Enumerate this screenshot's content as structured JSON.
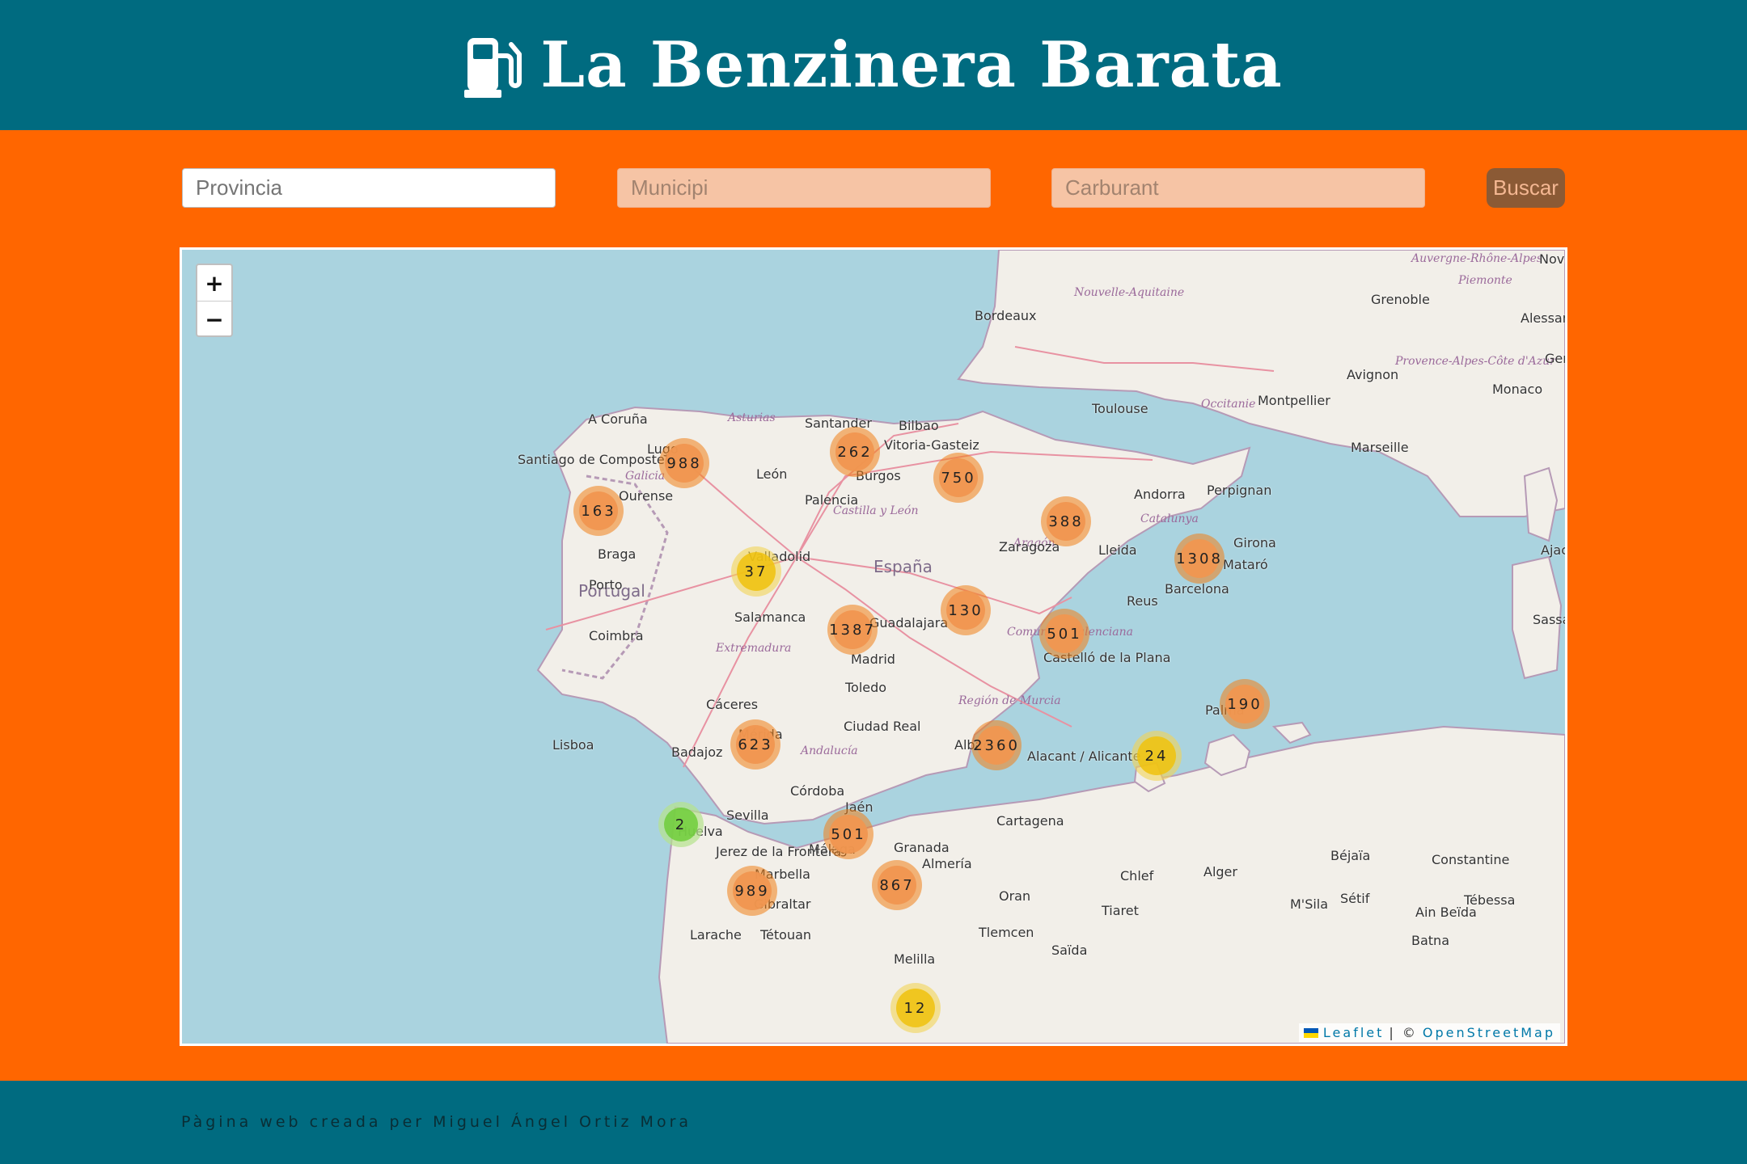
{
  "header": {
    "title": "La Benzinera Barata",
    "icon": "gas-pump-icon",
    "background": "#006b80"
  },
  "search": {
    "provincia_placeholder": "Provincia",
    "municipi_placeholder": "Municipi",
    "carburant_placeholder": "Carburant",
    "button_label": "Buscar"
  },
  "map": {
    "zoom_in": "+",
    "zoom_out": "−",
    "clusters": [
      {
        "count": "988",
        "color": "orange"
      },
      {
        "count": "262",
        "color": "orange"
      },
      {
        "count": "750",
        "color": "orange"
      },
      {
        "count": "163",
        "color": "orange"
      },
      {
        "count": "388",
        "color": "orange"
      },
      {
        "count": "1308",
        "color": "orange"
      },
      {
        "count": "37",
        "color": "yellow"
      },
      {
        "count": "130",
        "color": "orange"
      },
      {
        "count": "1387",
        "color": "orange"
      },
      {
        "count": "501",
        "color": "orange"
      },
      {
        "count": "190",
        "color": "orange"
      },
      {
        "count": "623",
        "color": "orange"
      },
      {
        "count": "2360",
        "color": "orange"
      },
      {
        "count": "24",
        "color": "yellow"
      },
      {
        "count": "2",
        "color": "green"
      },
      {
        "count": "501",
        "color": "orange"
      },
      {
        "count": "989",
        "color": "orange"
      },
      {
        "count": "867",
        "color": "orange"
      },
      {
        "count": "12",
        "color": "yellow"
      }
    ],
    "cities": [
      "Bordeaux",
      "Toulouse",
      "Montpellier",
      "Marseille",
      "Monaco",
      "Avignon",
      "Grenoble",
      "A Coruña",
      "Santiago de Compostela",
      "Lugo",
      "Ourense",
      "Santander",
      "Bilbao",
      "Vitoria-Gasteiz",
      "León",
      "Burgos",
      "Palencia",
      "Valladolid",
      "Zaragoza",
      "Lleida",
      "Andorra",
      "Perpignan",
      "Girona",
      "Mataró",
      "Barcelona",
      "Reus",
      "Braga",
      "Porto",
      "Salamanca",
      "Guadalajara",
      "Madrid",
      "Toledo",
      "Coimbra",
      "Castelló de la Plana",
      "Cáceres",
      "Mérida",
      "Ciudad Real",
      "Badajoz",
      "Lisboa",
      "Albacete",
      "Alacant / Alicante",
      "Córdoba",
      "Jaén",
      "Sevilla",
      "Huelva",
      "Cartagena",
      "Málaga",
      "Granada",
      "Almería",
      "Jerez de la Frontera",
      "Marbella",
      "Gibraltar",
      "Palma",
      "Oran",
      "Alger",
      "Chlef",
      "Béjaïa",
      "Constantine",
      "Sétif",
      "M'Sila",
      "Tiaret",
      "Tlemcen",
      "Saïda",
      "Larache",
      "Tétouan",
      "Melilla",
      "Tébessa",
      "Ain Beïda",
      "Batna",
      "Ajaccio",
      "Sassari",
      "Genova",
      "Alessandria",
      "Novara"
    ],
    "regions": [
      "Nouvelle-Aquitaine",
      "Occitanie",
      "Auvergne-Rhône-Alpes",
      "Provence-Alpes-Côte d'Azur",
      "Piemonte",
      "Galicia",
      "Asturias",
      "Castilla y León",
      "Aragón",
      "Catalunya",
      "Extremadura",
      "Comunitat Valenciana",
      "Región de Murcia",
      "Andalucía"
    ],
    "countries": [
      "España",
      "Portugal"
    ],
    "attribution_leaflet": "Leaflet",
    "attribution_sep": "| ©",
    "attribution_osm": "OpenStreetMap"
  },
  "footer": {
    "text": "Pàgina web creada per Miguel Ángel Ortiz Mora"
  },
  "colors": {
    "header_bg": "#006b80",
    "page_bg": "#ff6600",
    "water": "#aad3df",
    "button_bg": "#8b5a35"
  }
}
